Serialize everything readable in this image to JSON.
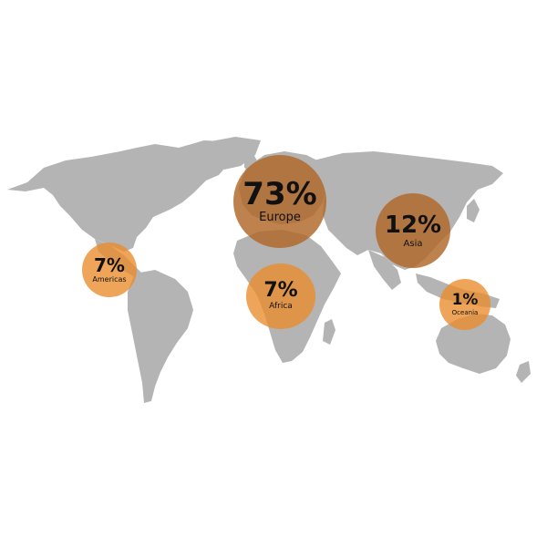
{
  "map": {
    "land_color": "#b4b4b4",
    "highlight_color": "#e98a2a",
    "regions": [
      {
        "id": "europe",
        "name": "Europe",
        "percent": "73%",
        "share": 0.73
      },
      {
        "id": "asia",
        "name": "Asia",
        "percent": "12%",
        "share": 0.12
      },
      {
        "id": "americas",
        "name": "Americas",
        "percent": "7%",
        "share": 0.07
      },
      {
        "id": "africa",
        "name": "Africa",
        "percent": "7%",
        "share": 0.07
      },
      {
        "id": "oceania",
        "name": "Oceania",
        "percent": "1%",
        "share": 0.01
      }
    ]
  }
}
